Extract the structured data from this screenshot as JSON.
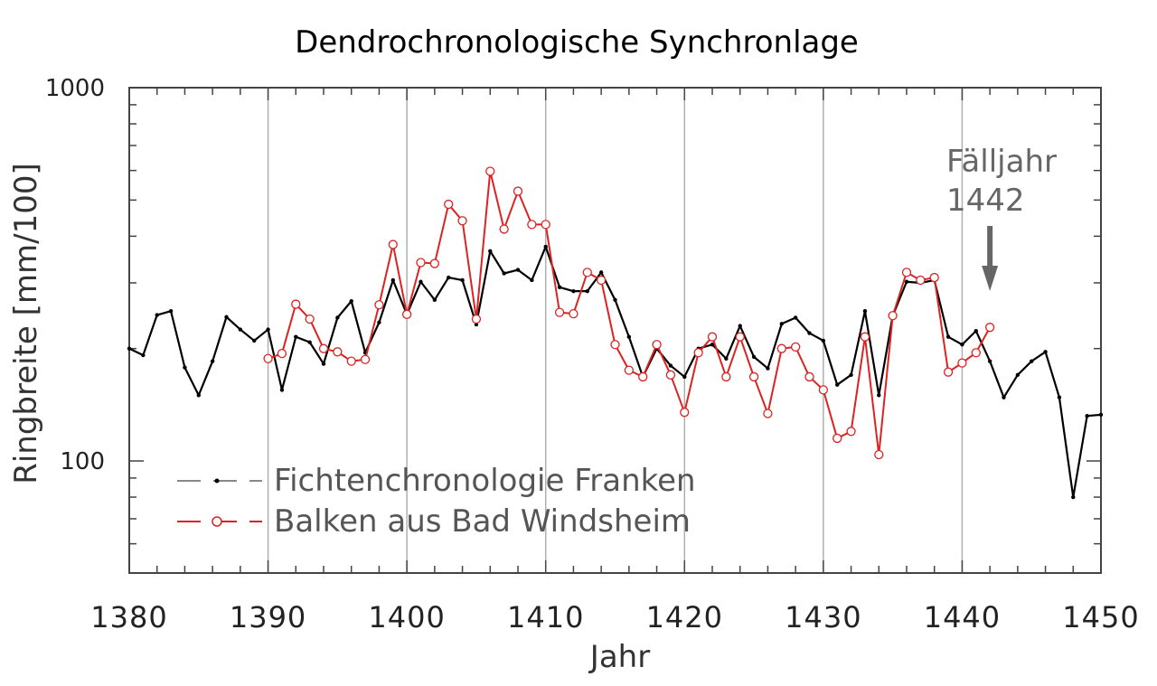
{
  "chart_data": {
    "type": "line",
    "title": "Dendrochronologische Synchronlage",
    "xlabel": "Jahr",
    "ylabel": "Ringbreite [mm/100]",
    "xlim": [
      1380,
      1450
    ],
    "ylim": [
      50,
      1000
    ],
    "yscale": "log",
    "xticks": [
      "1380",
      "1390",
      "1400",
      "1410",
      "1420",
      "1430",
      "1440",
      "1450"
    ],
    "yticks": [
      "1000",
      "100"
    ],
    "grid": "vertical lines at 1390–1440",
    "legend_position": "bottom-left",
    "colors": {
      "franken": "#000000",
      "windsheim": "#dd2222",
      "grid": "#b0b0b0",
      "annotation": "#666666"
    },
    "annotation": {
      "line1": "Fälljahr",
      "line2": "1442",
      "arrow_at_x": 1442
    },
    "series": [
      {
        "name": "Fichtenchronologie Franken",
        "x": [
          1380,
          1381,
          1382,
          1383,
          1384,
          1385,
          1386,
          1387,
          1388,
          1389,
          1390,
          1391,
          1392,
          1393,
          1394,
          1395,
          1396,
          1397,
          1398,
          1399,
          1400,
          1401,
          1402,
          1403,
          1404,
          1405,
          1406,
          1407,
          1408,
          1409,
          1410,
          1411,
          1412,
          1413,
          1414,
          1415,
          1416,
          1417,
          1418,
          1419,
          1420,
          1421,
          1422,
          1423,
          1424,
          1425,
          1426,
          1427,
          1428,
          1429,
          1430,
          1431,
          1432,
          1433,
          1434,
          1435,
          1436,
          1437,
          1438,
          1439,
          1440,
          1441,
          1442,
          1443,
          1444,
          1445,
          1446,
          1447,
          1448,
          1449,
          1450
        ],
        "values": [
          200,
          192,
          246,
          252,
          178,
          150,
          185,
          243,
          225,
          210,
          225,
          155,
          215,
          208,
          182,
          242,
          268,
          195,
          235,
          305,
          247,
          302,
          270,
          310,
          305,
          232,
          365,
          318,
          325,
          305,
          375,
          292,
          285,
          285,
          320,
          270,
          215,
          168,
          200,
          180,
          168,
          200,
          205,
          188,
          230,
          190,
          177,
          233,
          242,
          220,
          210,
          160,
          170,
          252,
          150,
          245,
          302,
          300,
          305,
          215,
          205,
          223,
          185,
          148,
          170,
          185,
          196,
          148,
          80,
          132,
          133
        ]
      },
      {
        "name": "Balken aus Bad Windsheim",
        "x": [
          1390,
          1391,
          1392,
          1393,
          1394,
          1395,
          1396,
          1397,
          1398,
          1399,
          1400,
          1401,
          1402,
          1403,
          1404,
          1405,
          1406,
          1407,
          1408,
          1409,
          1410,
          1411,
          1412,
          1413,
          1414,
          1415,
          1416,
          1417,
          1418,
          1419,
          1420,
          1421,
          1422,
          1423,
          1424,
          1425,
          1426,
          1427,
          1428,
          1429,
          1430,
          1431,
          1432,
          1433,
          1434,
          1435,
          1436,
          1437,
          1438,
          1439,
          1440,
          1441,
          1442
        ],
        "values": [
          188,
          194,
          263,
          240,
          200,
          196,
          185,
          187,
          262,
          380,
          247,
          340,
          338,
          487,
          440,
          240,
          597,
          418,
          528,
          430,
          430,
          250,
          248,
          320,
          305,
          205,
          175,
          168,
          205,
          170,
          135,
          195,
          215,
          168,
          215,
          168,
          134,
          200,
          202,
          168,
          155,
          115,
          120,
          215,
          104,
          245,
          320,
          305,
          310,
          173,
          183,
          195,
          228
        ]
      }
    ]
  }
}
